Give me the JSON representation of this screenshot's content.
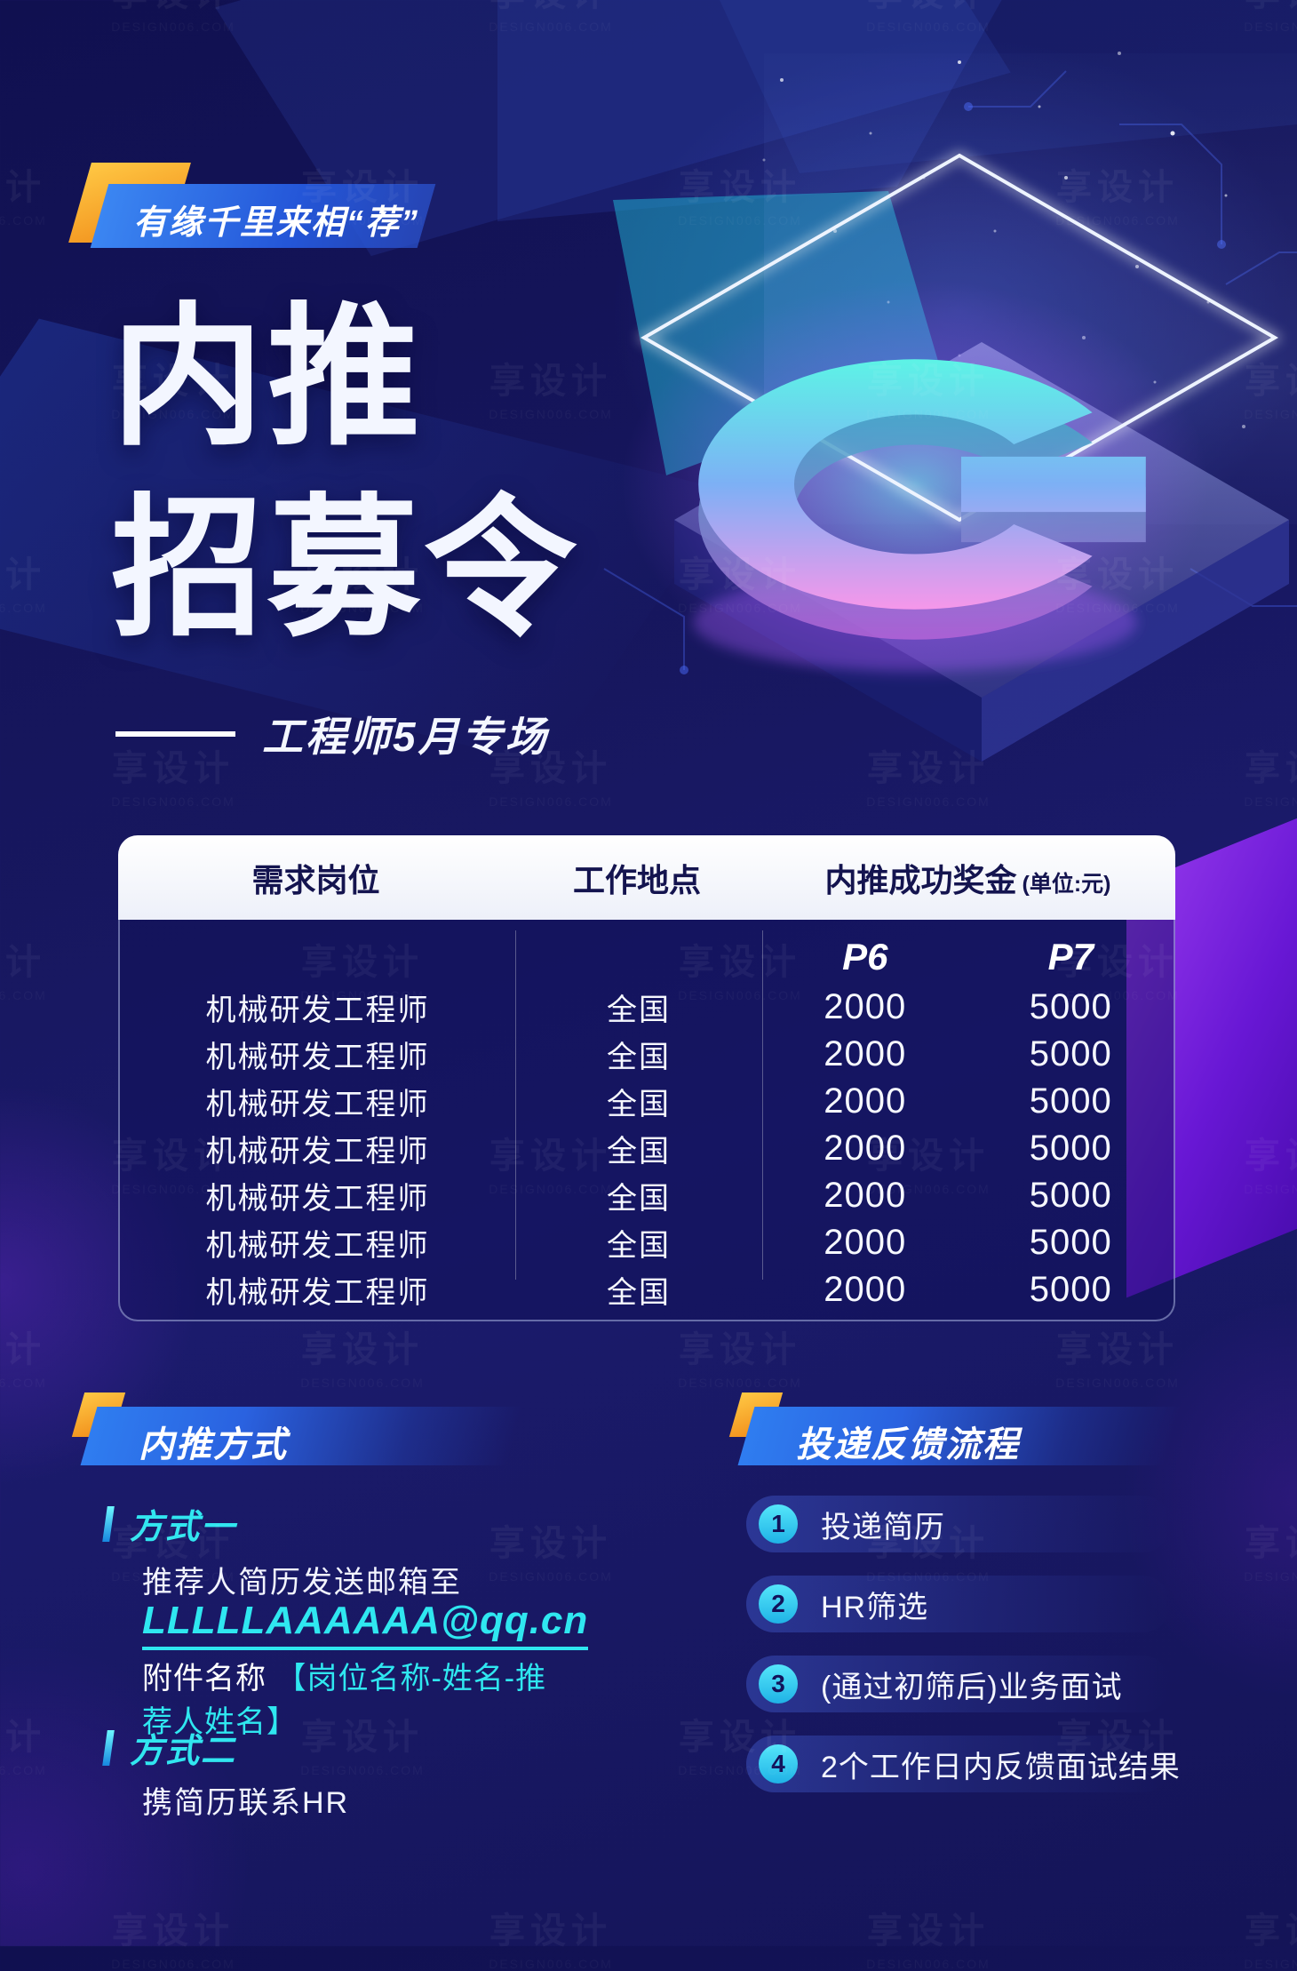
{
  "poster": {
    "badge": "有缘千里来相“荐”",
    "title_line1": "内推",
    "title_line2": "招募令",
    "subtitle": "工程师5月专场"
  },
  "table": {
    "headers": [
      "需求岗位",
      "工作地点",
      "内推成功奖金"
    ],
    "bonus_unit": "(单位:元)",
    "levels": [
      "P6",
      "P7"
    ],
    "rows": [
      {
        "position": "机械研发工程师",
        "location": "全国",
        "p6": "2000",
        "p7": "5000"
      },
      {
        "position": "机械研发工程师",
        "location": "全国",
        "p6": "2000",
        "p7": "5000"
      },
      {
        "position": "机械研发工程师",
        "location": "全国",
        "p6": "2000",
        "p7": "5000"
      },
      {
        "position": "机械研发工程师",
        "location": "全国",
        "p6": "2000",
        "p7": "5000"
      },
      {
        "position": "机械研发工程师",
        "location": "全国",
        "p6": "2000",
        "p7": "5000"
      },
      {
        "position": "机械研发工程师",
        "location": "全国",
        "p6": "2000",
        "p7": "5000"
      },
      {
        "position": "机械研发工程师",
        "location": "全国",
        "p6": "2000",
        "p7": "5000"
      }
    ]
  },
  "referral": {
    "heading": "内推方式",
    "method1_label": "方式一",
    "method1_text": "推荐人简历发送邮箱至",
    "email": "LLLLLAAAAAA@qq.cn",
    "attachment_prefix": "附件名称",
    "attachment_format": "【岗位名称-姓名-推荐人姓名】",
    "method2_label": "方式二",
    "method2_text": "携简历联系HR"
  },
  "process": {
    "heading": "投递反馈流程",
    "steps": [
      {
        "num": "1",
        "text": "投递简历"
      },
      {
        "num": "2",
        "text": "HR筛选"
      },
      {
        "num": "3",
        "text": "(通过初筛后)业务面试"
      },
      {
        "num": "4",
        "text": "2个工作日内反馈面试结果"
      }
    ]
  },
  "watermark": {
    "cn": "享设计",
    "en": "DESIGN006.COM"
  },
  "colors": {
    "accent_cyan": "#2fe7f0",
    "accent_yellow": "#ffb629",
    "purple": "#7a22e0",
    "bar_blue": "#2a62e0"
  }
}
